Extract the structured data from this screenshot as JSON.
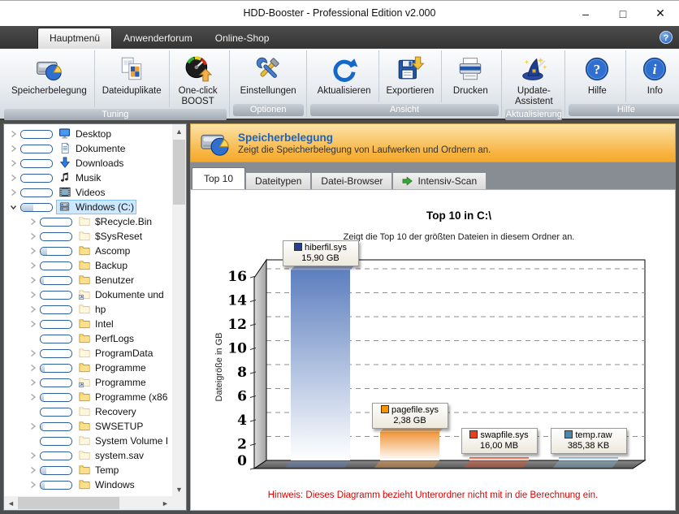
{
  "window": {
    "title": "HDD-Booster - Professional Edition v2.000",
    "controls": [
      {
        "name": "minimize",
        "glyph": "–"
      },
      {
        "name": "maximize",
        "glyph": "□"
      },
      {
        "name": "close",
        "glyph": "✕"
      }
    ]
  },
  "menubar": {
    "tabs": [
      {
        "label": "Hauptmenü",
        "active": true
      },
      {
        "label": "Anwenderforum",
        "active": false
      },
      {
        "label": "Online-Shop",
        "active": false
      }
    ],
    "help_icon": "?"
  },
  "toolbar": {
    "groups": [
      {
        "caption": "Tuning",
        "buttons": [
          {
            "label": "Speicherbelegung",
            "icon": "disk-pie"
          },
          {
            "label": "Dateiduplikate",
            "icon": "duplicates"
          },
          {
            "label": "One-click\nBOOST",
            "icon": "gauge"
          }
        ]
      },
      {
        "caption": "Optionen",
        "buttons": [
          {
            "label": "Einstellungen",
            "icon": "tools"
          }
        ]
      },
      {
        "caption": "Ansicht",
        "buttons": [
          {
            "label": "Aktualisieren",
            "icon": "refresh"
          },
          {
            "label": "Exportieren",
            "icon": "export"
          },
          {
            "label": "Drucken",
            "icon": "printer"
          }
        ]
      },
      {
        "caption": "Aktualisierung",
        "buttons": [
          {
            "label": "Update-Assistent",
            "icon": "wizard"
          }
        ]
      },
      {
        "caption": "Hilfe",
        "buttons": [
          {
            "label": "Hilfe",
            "icon": "help-circle"
          },
          {
            "label": "Info",
            "icon": "info-circle"
          }
        ]
      }
    ]
  },
  "tree": {
    "items": [
      {
        "label": "Desktop",
        "icon": "desktop",
        "level": 0,
        "chevron": "collapsed",
        "fill": 0,
        "selected": false
      },
      {
        "label": "Dokumente",
        "icon": "document",
        "level": 0,
        "chevron": "collapsed",
        "fill": 0,
        "selected": false
      },
      {
        "label": "Downloads",
        "icon": "download",
        "level": 0,
        "chevron": "collapsed",
        "fill": 0,
        "selected": false
      },
      {
        "label": "Musik",
        "icon": "music",
        "level": 0,
        "chevron": "collapsed",
        "fill": 0,
        "selected": false
      },
      {
        "label": "Videos",
        "icon": "film",
        "level": 0,
        "chevron": "collapsed",
        "fill": 0,
        "selected": false
      },
      {
        "label": "Windows (C:)",
        "icon": "drive",
        "level": 0,
        "chevron": "expanded",
        "fill": 40,
        "selected": true
      },
      {
        "label": "$Recycle.Bin",
        "icon": "folder-pale",
        "level": 1,
        "chevron": "collapsed",
        "fill": 0,
        "selected": false
      },
      {
        "label": "$SysReset",
        "icon": "folder-pale",
        "level": 1,
        "chevron": "collapsed",
        "fill": 0,
        "selected": false
      },
      {
        "label": "Ascomp",
        "icon": "folder",
        "level": 1,
        "chevron": "collapsed",
        "fill": 20,
        "selected": false
      },
      {
        "label": "Backup",
        "icon": "folder",
        "level": 1,
        "chevron": "collapsed",
        "fill": 0,
        "selected": false
      },
      {
        "label": "Benutzer",
        "icon": "folder",
        "level": 1,
        "chevron": "collapsed",
        "fill": 10,
        "selected": false
      },
      {
        "label": "Dokumente und",
        "icon": "folder-pale-shortcut",
        "level": 1,
        "chevron": "collapsed",
        "fill": 0,
        "selected": false
      },
      {
        "label": "hp",
        "icon": "folder-pale",
        "level": 1,
        "chevron": "collapsed",
        "fill": 0,
        "selected": false
      },
      {
        "label": "Intel",
        "icon": "folder",
        "level": 1,
        "chevron": "collapsed",
        "fill": 0,
        "selected": false
      },
      {
        "label": "PerfLogs",
        "icon": "folder",
        "level": 1,
        "chevron": "none",
        "fill": 0,
        "selected": false
      },
      {
        "label": "ProgramData",
        "icon": "folder-pale",
        "level": 1,
        "chevron": "collapsed",
        "fill": 0,
        "selected": false
      },
      {
        "label": "Programme",
        "icon": "folder",
        "level": 1,
        "chevron": "collapsed",
        "fill": 12,
        "selected": false
      },
      {
        "label": "Programme",
        "icon": "folder-pale-shortcut",
        "level": 1,
        "chevron": "collapsed",
        "fill": 0,
        "selected": false
      },
      {
        "label": "Programme (x86",
        "icon": "folder",
        "level": 1,
        "chevron": "collapsed",
        "fill": 10,
        "selected": false
      },
      {
        "label": "Recovery",
        "icon": "folder-pale",
        "level": 1,
        "chevron": "none",
        "fill": 0,
        "selected": false
      },
      {
        "label": "SWSETUP",
        "icon": "folder",
        "level": 1,
        "chevron": "collapsed",
        "fill": 8,
        "selected": false
      },
      {
        "label": "System Volume I",
        "icon": "folder-pale",
        "level": 1,
        "chevron": "none",
        "fill": 0,
        "selected": false
      },
      {
        "label": "system.sav",
        "icon": "folder-pale",
        "level": 1,
        "chevron": "collapsed",
        "fill": 0,
        "selected": false
      },
      {
        "label": "Temp",
        "icon": "folder",
        "level": 1,
        "chevron": "collapsed",
        "fill": 18,
        "selected": false
      },
      {
        "label": "Windows",
        "icon": "folder",
        "level": 1,
        "chevron": "collapsed",
        "fill": 14,
        "selected": false
      }
    ],
    "scrollbar": {
      "up": "▲",
      "down": "▼",
      "left": "◄",
      "right": "►"
    }
  },
  "banner": {
    "title": "Speicherbelegung",
    "subtitle": "Zeigt die Speicherbelegung von Laufwerken und Ordnern an.",
    "icon": "disk-pie"
  },
  "content_tabs": [
    {
      "label": "Top 10",
      "active": true
    },
    {
      "label": "Dateitypen",
      "active": false
    },
    {
      "label": "Datei-Browser",
      "active": false
    },
    {
      "label": "Intensiv-Scan",
      "active": false,
      "icon": "green-arrow"
    }
  ],
  "chart_data": {
    "type": "bar",
    "title": "Top 10 in C:\\",
    "subtitle": "Zeigt die Top 10 der größten Dateien in diesem Ordner an.",
    "ylabel": "Dateigröße in GB",
    "ylim": [
      0,
      17
    ],
    "yticks": [
      0,
      2,
      4,
      6,
      8,
      10,
      12,
      14,
      16
    ],
    "grid": "dashed-horizontal",
    "bars": [
      {
        "name": "hiberfil.sys",
        "value_gb": 15.9,
        "size_label": "15,90 GB",
        "color": "#5d7fbf",
        "legend_color": "#24418c"
      },
      {
        "name": "pagefile.sys",
        "value_gb": 2.38,
        "size_label": "2,38 GB",
        "color": "#f0953a",
        "legend_color": "#f59300"
      },
      {
        "name": "swapfile.sys",
        "value_gb": 0.0156,
        "size_label": "16,00 MB",
        "color": "#e6512b",
        "legend_color": "#e8401c"
      },
      {
        "name": "temp.raw",
        "value_gb": 0.0004,
        "size_label": "385,38 KB",
        "color": "#7fb2d0",
        "legend_color": "#4d87ae"
      }
    ],
    "footnote": "Hinweis: Dieses Diagramm bezieht Unterordner nicht mit in die Berechnung ein."
  }
}
